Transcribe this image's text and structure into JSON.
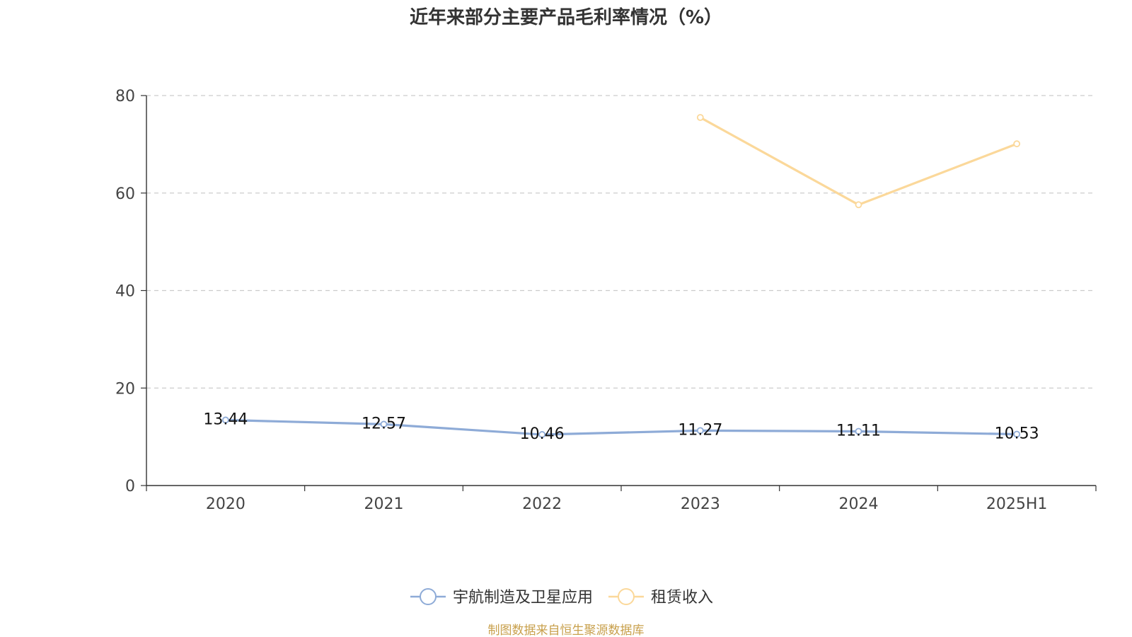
{
  "chart_data": {
    "type": "line",
    "title": "近年来部分主要产品毛利率情况（%）",
    "categories": [
      "2020",
      "2021",
      "2022",
      "2023",
      "2024",
      "2025H1"
    ],
    "ylim": [
      0,
      80
    ],
    "yticks": [
      0,
      20,
      40,
      60,
      80
    ],
    "grid": true,
    "legend_position": "bottom",
    "series": [
      {
        "name": "宇航制造及卫星应用",
        "values": [
          13.44,
          12.57,
          10.46,
          11.27,
          11.11,
          10.53
        ],
        "labels": [
          "13.44",
          "12.57",
          "10.46",
          "11.27",
          "11.11",
          "10.53"
        ],
        "color": "#8eabd7",
        "show_labels": true
      },
      {
        "name": "租赁收入",
        "values": [
          null,
          null,
          null,
          75.5,
          57.6,
          70.1
        ],
        "color": "#fbd89a",
        "show_labels": false
      }
    ]
  },
  "source_text": "制图数据来自恒生聚源数据库",
  "colors": {
    "axis": "#333333",
    "grid": "#cccccc",
    "source": "#c8a04c"
  }
}
